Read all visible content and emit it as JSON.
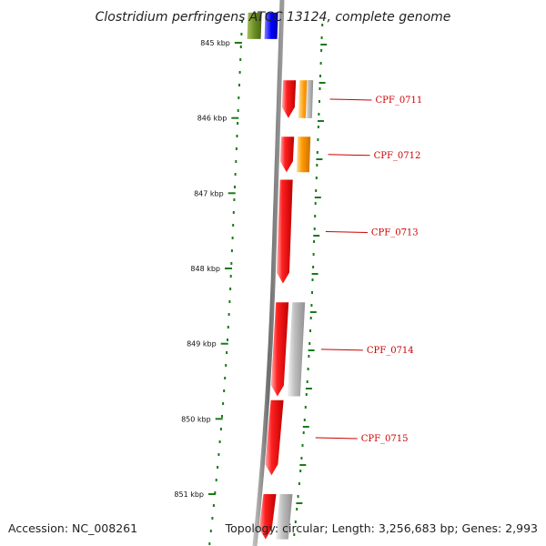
{
  "title": "Clostridium perfringens ATCC 13124, complete genome",
  "footer": {
    "accession": "Accession: NC_008261",
    "summary": "Topology: circular; Length: 3,256,683 bp; Genes: 2,993"
  },
  "colors": {
    "backbone": "#808080",
    "tick": "#1a7a1a",
    "cds": "#ff0000",
    "orange": "#ff9900",
    "gray": "#b0b0b0",
    "green": "#6b8e23",
    "blue": "#0000ff",
    "label": "#cc0000"
  },
  "chart_data": {
    "type": "genome-map",
    "x_unit": "kbp",
    "scale_labels": [
      "845 kbp",
      "846 kbp",
      "847 kbp",
      "848 kbp",
      "849 kbp",
      "850 kbp",
      "851 kbp"
    ],
    "scale_values": [
      845,
      846,
      847,
      848,
      849,
      850,
      851
    ],
    "visible_range_kbp": [
      844.75,
      851.5
    ],
    "features": [
      {
        "label": "",
        "color": "green",
        "start": 844.6,
        "end": 844.95,
        "track": "outer-left"
      },
      {
        "label": "",
        "color": "blue",
        "start": 844.6,
        "end": 844.95,
        "track": "outer-mid"
      },
      {
        "label": "CPF_0711",
        "color": "cds",
        "start": 845.5,
        "end": 846.0,
        "track": "cds"
      },
      {
        "label": "",
        "color": "orange",
        "start": 845.5,
        "end": 846.0,
        "track": "cog"
      },
      {
        "label": "",
        "color": "gray",
        "start": 845.5,
        "end": 846.0,
        "track": "cog2"
      },
      {
        "label": "CPF_0712",
        "color": "cds",
        "start": 846.25,
        "end": 846.72,
        "track": "cds"
      },
      {
        "label": "",
        "color": "orange",
        "start": 846.25,
        "end": 846.72,
        "track": "cog"
      },
      {
        "label": "CPF_0713",
        "color": "cds",
        "start": 846.82,
        "end": 848.2,
        "track": "cds"
      },
      {
        "label": "CPF_0714",
        "color": "cds",
        "start": 848.45,
        "end": 849.7,
        "track": "cds"
      },
      {
        "label": "",
        "color": "gray",
        "start": 848.45,
        "end": 849.7,
        "track": "cog"
      },
      {
        "label": "CPF_0715",
        "color": "cds",
        "start": 849.75,
        "end": 850.75,
        "track": "cds"
      },
      {
        "label": "",
        "color": "cds",
        "start": 851.0,
        "end": 851.6,
        "track": "cds"
      },
      {
        "label": "",
        "color": "gray",
        "start": 851.0,
        "end": 851.6,
        "track": "cog"
      }
    ]
  }
}
